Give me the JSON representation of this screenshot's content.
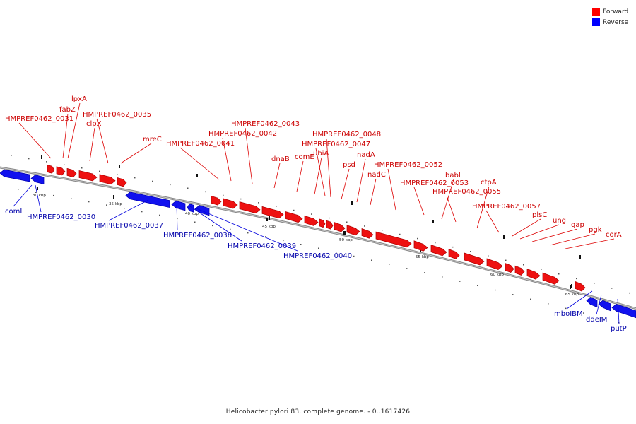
{
  "legend": [
    {
      "label": "Forward",
      "color": "#ff0000"
    },
    {
      "label": "Reverse",
      "color": "#0000ff"
    }
  ],
  "caption": "Helicobacter pylori 83, complete genome. - 0..1617426",
  "colors": {
    "forward": "#ee1111",
    "reverse": "#1111ee",
    "backbone": "#888888",
    "forward_text": "#cc0000",
    "reverse_text": "#0000aa"
  },
  "ticks": [
    "30 kbp",
    "35 kbp",
    "40 kbp",
    "45 kbp",
    "50 kbp",
    "55 kbp",
    "60 kbp",
    "65 kbp"
  ],
  "genes": [
    {
      "name": "",
      "strand": "reverse"
    },
    {
      "name": "comL",
      "strand": "reverse"
    },
    {
      "name": "HMPREF0462_0030",
      "strand": "reverse"
    },
    {
      "name": "HMPREF0462_0031",
      "strand": "forward"
    },
    {
      "name": "fabZ",
      "strand": "forward"
    },
    {
      "name": "lpxA",
      "strand": "forward"
    },
    {
      "name": "clpX",
      "strand": "forward"
    },
    {
      "name": "HMPREF0462_0035",
      "strand": "forward"
    },
    {
      "name": "mreC",
      "strand": "forward"
    },
    {
      "name": "HMPREF0462_0037",
      "strand": "reverse"
    },
    {
      "name": "HMPREF0462_0038",
      "strand": "reverse"
    },
    {
      "name": "HMPREF0462_0039",
      "strand": "reverse"
    },
    {
      "name": "HMPREF0462_0040",
      "strand": "reverse"
    },
    {
      "name": "HMPREF0462_0041",
      "strand": "forward"
    },
    {
      "name": "HMPREF0462_0042",
      "strand": "forward"
    },
    {
      "name": "HMPREF0462_0043",
      "strand": "forward"
    },
    {
      "name": "dnaB",
      "strand": "forward"
    },
    {
      "name": "comE",
      "strand": "forward"
    },
    {
      "name": "ubiA",
      "strand": "forward"
    },
    {
      "name": "HMPREF0462_0047",
      "strand": "forward"
    },
    {
      "name": "HMPREF0462_0048",
      "strand": "forward"
    },
    {
      "name": "psd",
      "strand": "forward"
    },
    {
      "name": "nadA",
      "strand": "forward"
    },
    {
      "name": "nadC",
      "strand": "forward"
    },
    {
      "name": "HMPREF0462_0052",
      "strand": "forward"
    },
    {
      "name": "HMPREF0462_0053",
      "strand": "forward"
    },
    {
      "name": "babI",
      "strand": "forward"
    },
    {
      "name": "HMPREF0462_0055",
      "strand": "forward"
    },
    {
      "name": "ctpA",
      "strand": "forward"
    },
    {
      "name": "HMPREF0462_0057",
      "strand": "forward"
    },
    {
      "name": "plsC",
      "strand": "forward"
    },
    {
      "name": "ung",
      "strand": "forward"
    },
    {
      "name": "gap",
      "strand": "forward"
    },
    {
      "name": "pgk",
      "strand": "forward"
    },
    {
      "name": "corA",
      "strand": "forward"
    },
    {
      "name": "mboIBM",
      "strand": "reverse"
    },
    {
      "name": "ddeIM",
      "strand": "reverse"
    },
    {
      "name": "putP",
      "strand": "reverse"
    },
    {
      "name": "",
      "strand": "reverse"
    }
  ]
}
